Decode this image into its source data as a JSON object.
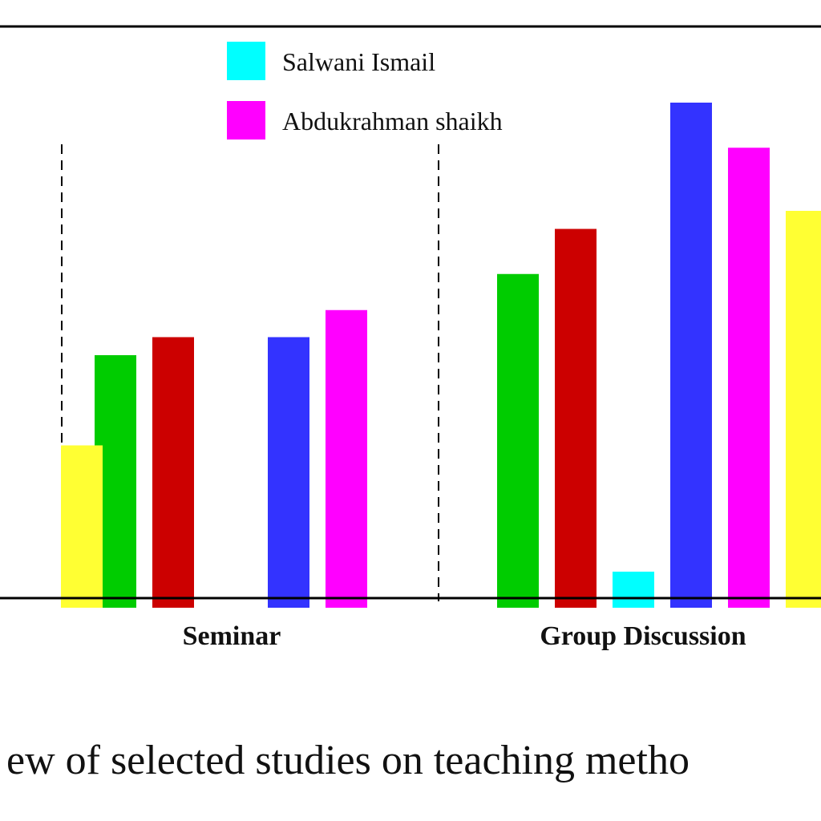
{
  "chart_data": {
    "type": "bar",
    "categories": [
      "",
      "Seminar",
      "Group Discussion"
    ],
    "series": [
      {
        "name": "",
        "color": "#00CC00",
        "values": [
          null,
          28,
          37
        ]
      },
      {
        "name": "",
        "color": "#CC0000",
        "values": [
          null,
          30,
          42
        ]
      },
      {
        "name": "Salwani Ismail",
        "color": "#00FFFF",
        "values": [
          null,
          null,
          4
        ]
      },
      {
        "name": "",
        "color": "#3333FF",
        "values": [
          null,
          30,
          56
        ]
      },
      {
        "name": "Abdukrahman shaikh",
        "color": "#FF00FF",
        "values": [
          null,
          33,
          51
        ]
      },
      {
        "name": "",
        "color": "#FFFF33",
        "values": [
          18,
          null,
          44
        ]
      }
    ],
    "legend": {
      "placement": "top-center",
      "entries": [
        {
          "label": "Salwani Ismail",
          "color": "#00FFFF"
        },
        {
          "label": "Abdukrahman shaikh",
          "color": "#FF00FF"
        }
      ]
    },
    "title": "",
    "xlabel": "",
    "ylabel": "",
    "ylim": [
      0,
      60
    ],
    "grid": false,
    "caption": "ew of selected studies on teaching metho"
  }
}
